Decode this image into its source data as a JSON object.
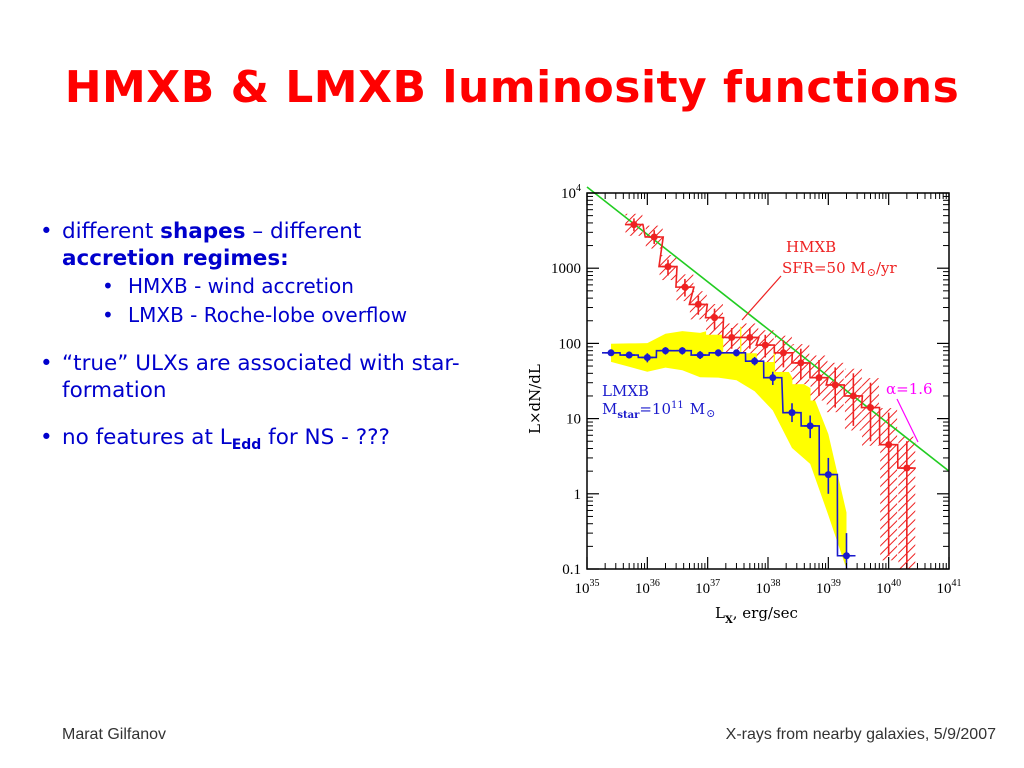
{
  "slide": {
    "title": "HMXB & LMXB luminosity functions",
    "bullet1": {
      "pre": "different ",
      "b1": "shapes",
      "mid": " – different",
      "b2": "accretion regimes:"
    },
    "sub1": "HMXB - wind accretion",
    "sub2": "LMXB - Roche-lobe overflow",
    "bullet2": "“true” ULXs are associated with star-formation",
    "bullet3": {
      "pre": "no features at L",
      "sub": "Edd",
      "post": " for NS - ???"
    },
    "footer_left": "Marat Gilfanov",
    "footer_right": "X-rays from nearby galaxies, 5/9/2007"
  },
  "colors": {
    "title": "#ff0000",
    "text": "#0000cc",
    "hmxb": "#ee2222",
    "lmxb": "#1a1acc",
    "fit": "#22cc22",
    "band": "#ffff00",
    "alpha": "#ff00ff"
  },
  "chart_data": {
    "type": "line",
    "log_scale": {
      "x": true,
      "y": true
    },
    "xlim": [
      1e+35,
      1e+41
    ],
    "ylim": [
      0.1,
      10000
    ],
    "xlabel": {
      "main": "L",
      "sub": "X",
      "rest": ", erg/sec"
    },
    "ylabel": "L×dN/dL",
    "x_ticks": [
      {
        "base": "10",
        "exp": "35"
      },
      {
        "base": "10",
        "exp": "36"
      },
      {
        "base": "10",
        "exp": "37"
      },
      {
        "base": "10",
        "exp": "38"
      },
      {
        "base": "10",
        "exp": "39"
      },
      {
        "base": "10",
        "exp": "40"
      },
      {
        "base": "10",
        "exp": "41"
      }
    ],
    "y_ticks": [
      {
        "base": "0.1",
        "exp": ""
      },
      {
        "base": "1",
        "exp": ""
      },
      {
        "base": "10",
        "exp": ""
      },
      {
        "base": "100",
        "exp": ""
      },
      {
        "base": "1000",
        "exp": ""
      },
      {
        "base": "10",
        "exp": "4"
      }
    ],
    "grid": false,
    "series": [
      {
        "name": "HMXB",
        "x": [
          6e+35,
          1.3e+36,
          2.2e+36,
          4.2e+36,
          7e+36,
          1.3e+37,
          2.5e+37,
          5e+37,
          9e+37,
          1.8e+38,
          3.5e+38,
          7e+38,
          1.3e+39,
          2.6e+39,
          5e+39,
          1e+40,
          2e+40
        ],
        "y": [
          3800,
          2600,
          1050,
          560,
          330,
          220,
          120,
          120,
          95,
          75,
          55,
          35,
          28,
          20,
          14,
          4.5,
          2.2
        ],
        "err_low": [
          3100,
          2100,
          800,
          420,
          240,
          150,
          85,
          85,
          65,
          48,
          33,
          20,
          14,
          8,
          5,
          0.15,
          0.1
        ],
        "err_high": [
          4600,
          3200,
          1300,
          720,
          430,
          290,
          160,
          160,
          130,
          110,
          85,
          60,
          48,
          40,
          30,
          12,
          5
        ]
      },
      {
        "name": "LMXB",
        "x": [
          2.5e+35,
          5e+35,
          1e+36,
          2e+36,
          3.8e+36,
          7.5e+36,
          1.5e+37,
          3e+37,
          6e+37,
          1.2e+38,
          2.5e+38,
          5e+38,
          1e+39,
          2e+39
        ],
        "y": [
          75,
          70,
          65,
          80,
          80,
          70,
          75,
          75,
          58,
          35,
          12,
          8,
          1.8,
          0.15
        ],
        "err_low": [
          68,
          63,
          56,
          71,
          71,
          62,
          67,
          67,
          51,
          28,
          9,
          5.5,
          1,
          0.08
        ],
        "err_high": [
          83,
          78,
          74,
          89,
          89,
          79,
          83,
          83,
          66,
          42,
          16,
          11,
          3,
          0.3
        ]
      }
    ],
    "fit": {
      "label": "α=1.6",
      "x": [
        1e+35,
        1e+41
      ],
      "y": [
        12000,
        2
      ]
    },
    "annotations": [
      {
        "text": "HMXB"
      },
      {
        "text": "SFR=50 M",
        "suffix": "/yr"
      },
      {
        "text": "LMXB"
      },
      {
        "text": "M",
        "sub": "star",
        "mid": "=10",
        "sup": "11",
        "suffix": "M"
      }
    ]
  }
}
